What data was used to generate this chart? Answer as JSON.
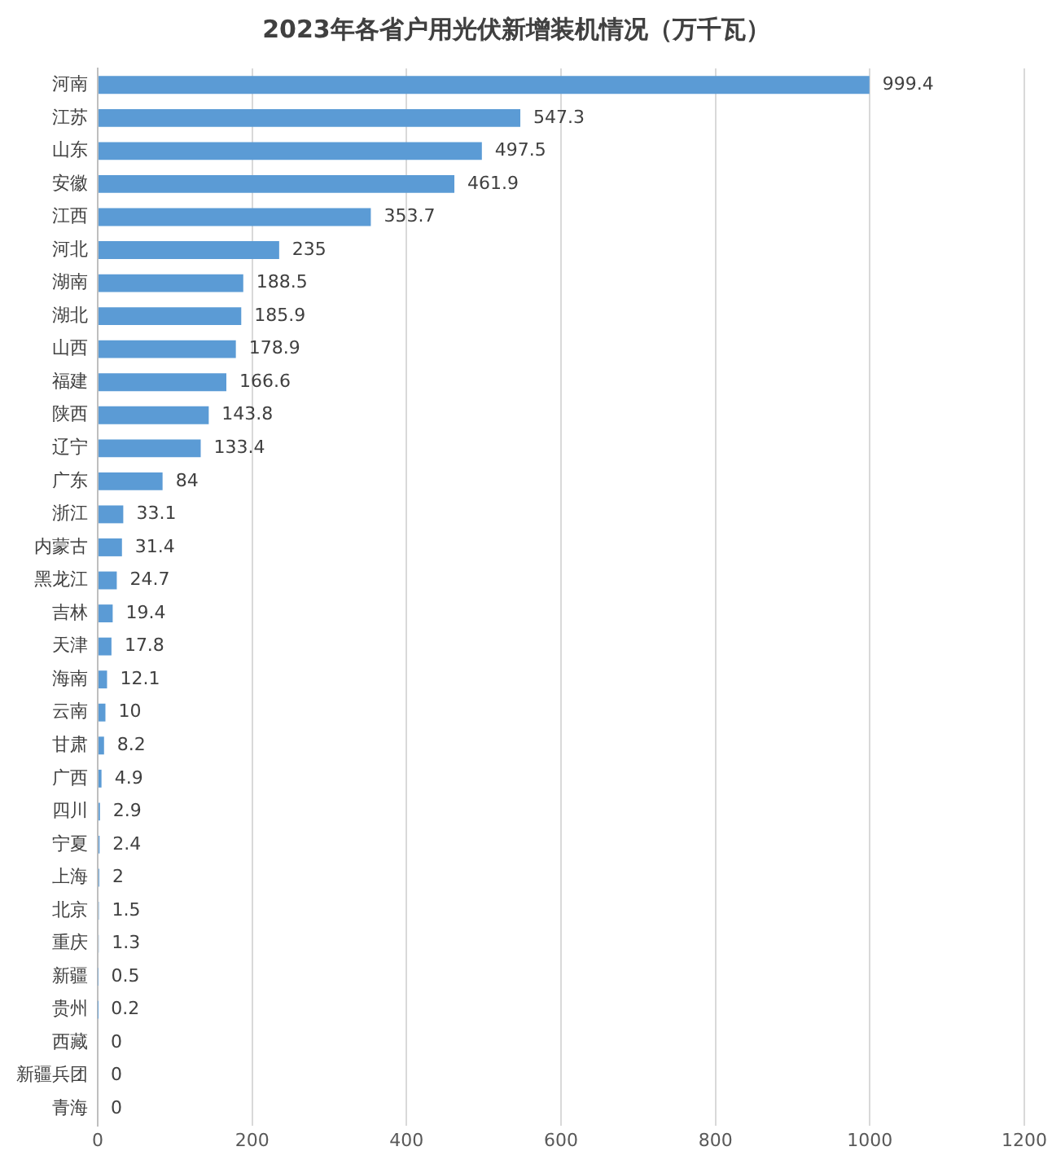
{
  "chart_data": {
    "type": "bar",
    "orientation": "horizontal",
    "title": "2023年各省户用光伏新增装机情况（万千瓦）",
    "categories": [
      "河南",
      "江苏",
      "山东",
      "安徽",
      "江西",
      "河北",
      "湖南",
      "湖北",
      "山西",
      "福建",
      "陕西",
      "辽宁",
      "广东",
      "浙江",
      "内蒙古",
      "黑龙江",
      "吉林",
      "天津",
      "海南",
      "云南",
      "甘肃",
      "广西",
      "四川",
      "宁夏",
      "上海",
      "北京",
      "重庆",
      "新疆",
      "贵州",
      "西藏",
      "新疆兵团",
      "青海"
    ],
    "values": [
      999.4,
      547.3,
      497.5,
      461.9,
      353.7,
      235,
      188.5,
      185.9,
      178.9,
      166.6,
      143.8,
      133.4,
      84,
      33.1,
      31.4,
      24.7,
      19.4,
      17.8,
      12.1,
      10,
      8.2,
      4.9,
      2.9,
      2.4,
      2,
      1.5,
      1.3,
      0.5,
      0.2,
      0,
      0,
      0
    ],
    "color": "#5b9bd5",
    "xlim": [
      0,
      1200
    ],
    "xticks": [
      0,
      200,
      400,
      600,
      800,
      1000,
      1200
    ],
    "grid": "x",
    "data_labels": true
  }
}
